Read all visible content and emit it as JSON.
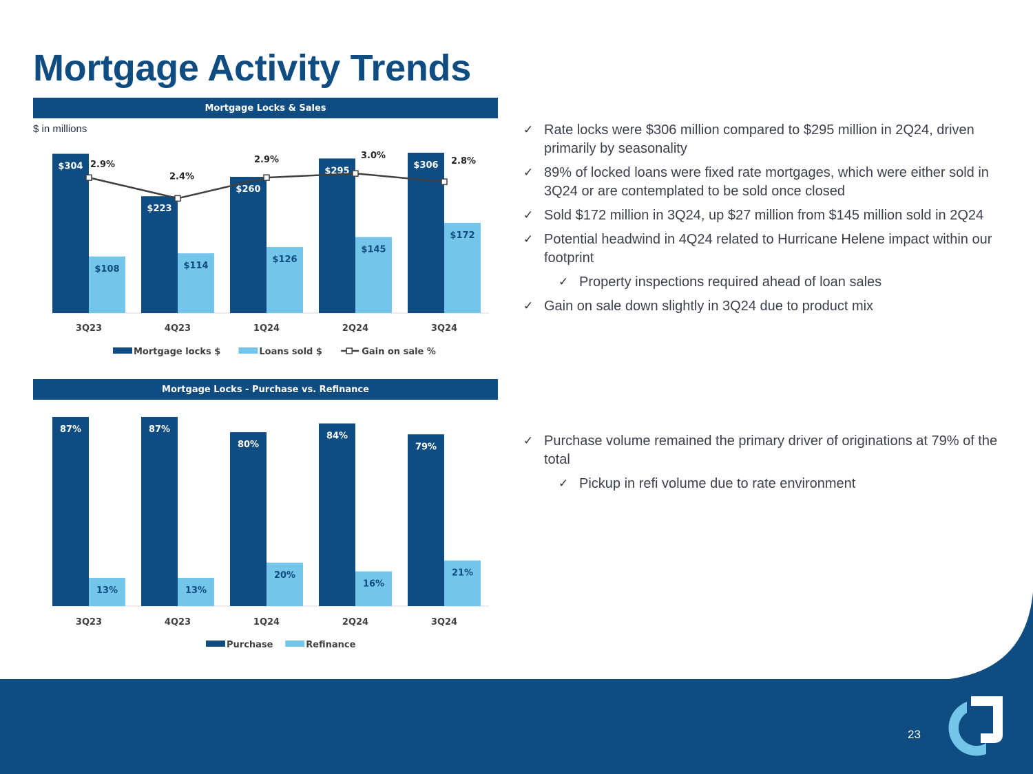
{
  "title": "Mortgage Activity Trends",
  "page_number": "23",
  "colors": {
    "brand_dark": "#0f4c81",
    "brand_light": "#74c5ea",
    "line": "#404040",
    "footer_blue": "#0f4c81"
  },
  "panels": {
    "locks_sales": {
      "header": "Mortgage Locks & Sales",
      "units_note": "$ in millions"
    },
    "purchase_refi": {
      "header": "Mortgage Locks - Purchase vs. Refinance"
    }
  },
  "bullets_top": [
    {
      "text": "Rate locks were $306 million compared to $295 million in 2Q24, driven primarily by seasonality",
      "level": 0
    },
    {
      "text": "89% of locked loans were fixed rate mortgages, which were either sold in 3Q24 or are contemplated to be sold once closed",
      "level": 0
    },
    {
      "text": "Sold $172 million in 3Q24, up $27 million from $145 million sold in 2Q24",
      "level": 0
    },
    {
      "text": "Potential headwind in 4Q24 related to Hurricane Helene impact within our footprint",
      "level": 0
    },
    {
      "text": "Property inspections required ahead of loan sales",
      "level": 1
    },
    {
      "text": "Gain on sale down slightly in 3Q24 due to product mix",
      "level": 0
    }
  ],
  "bullets_bottom": [
    {
      "text": "Purchase volume remained the primary driver of originations at 79% of the total",
      "level": 0
    },
    {
      "text": "Pickup in refi volume due to rate environment",
      "level": 1
    }
  ],
  "check_glyph": "✓",
  "chart_data": [
    {
      "type": "bar",
      "title": "Mortgage Locks & Sales",
      "ylabel": "$ in millions",
      "categories": [
        "3Q23",
        "4Q23",
        "1Q24",
        "2Q24",
        "3Q24"
      ],
      "series": [
        {
          "name": "Mortgage locks $",
          "kind": "bar",
          "values": [
            304,
            223,
            260,
            295,
            306
          ],
          "labels": [
            "$304",
            "$223",
            "$260",
            "$295",
            "$306"
          ],
          "color": "#0f4c81"
        },
        {
          "name": "Loans sold $",
          "kind": "bar",
          "values": [
            108,
            114,
            126,
            145,
            172
          ],
          "labels": [
            "$108",
            "$114",
            "$126",
            "$145",
            "$172"
          ],
          "color": "#74c5ea"
        },
        {
          "name": "Gain on sale %",
          "kind": "line",
          "axis": "secondary",
          "values": [
            2.9,
            2.4,
            2.9,
            3.0,
            2.8
          ],
          "labels": [
            "2.9%",
            "2.4%",
            "2.9%",
            "3.0%",
            "2.8%"
          ],
          "color": "#404040"
        }
      ],
      "ylim": [
        0,
        306
      ],
      "y2lim": [
        0,
        3.4
      ],
      "legend": "bottom"
    },
    {
      "type": "bar",
      "title": "Mortgage Locks - Purchase vs. Refinance",
      "categories": [
        "3Q23",
        "4Q23",
        "1Q24",
        "2Q24",
        "3Q24"
      ],
      "series": [
        {
          "name": "Purchase",
          "kind": "bar",
          "values": [
            87,
            87,
            80,
            84,
            79
          ],
          "labels": [
            "87%",
            "87%",
            "80%",
            "84%",
            "79%"
          ],
          "color": "#0f4c81"
        },
        {
          "name": "Refinance",
          "kind": "bar",
          "values": [
            13,
            13,
            20,
            16,
            21
          ],
          "labels": [
            "13%",
            "13%",
            "20%",
            "16%",
            "21%"
          ],
          "color": "#74c5ea"
        }
      ],
      "ylim": [
        0,
        87
      ],
      "legend": "bottom"
    }
  ]
}
